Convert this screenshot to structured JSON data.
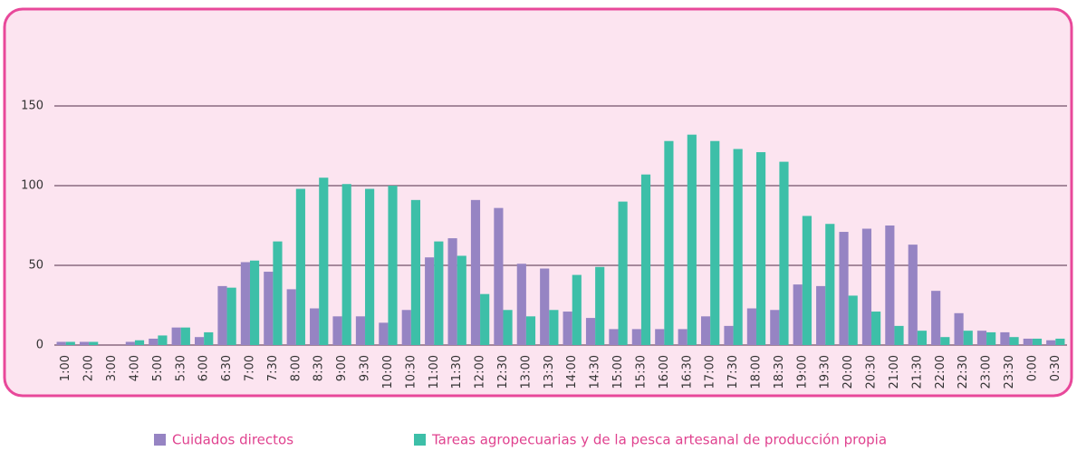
{
  "chart_data": {
    "type": "bar",
    "categories": [
      "1:00",
      "2:00",
      "3:00",
      "4:00",
      "5:00",
      "5:30",
      "6:00",
      "6:30",
      "7:00",
      "7:30",
      "8:00",
      "8:30",
      "9:00",
      "9:30",
      "10:00",
      "10:30",
      "11:00",
      "11:30",
      "12:00",
      "12:30",
      "13:00",
      "13:30",
      "14:00",
      "14:30",
      "15:00",
      "15:30",
      "16:00",
      "16:30",
      "17:00",
      "17:30",
      "18:00",
      "18:30",
      "19:00",
      "19:30",
      "20:00",
      "20:30",
      "21:00",
      "21:30",
      "22:00",
      "22:30",
      "23:00",
      "23:30",
      "0:00",
      "0:30"
    ],
    "series": [
      {
        "name": "Cuidados directos",
        "color": "#9684c3",
        "values": [
          2,
          2,
          0,
          2,
          4,
          11,
          5,
          37,
          52,
          46,
          35,
          23,
          18,
          18,
          14,
          22,
          55,
          67,
          91,
          86,
          51,
          48,
          21,
          17,
          10,
          10,
          10,
          10,
          18,
          12,
          23,
          22,
          38,
          37,
          71,
          73,
          75,
          63,
          34,
          20,
          9,
          8,
          4,
          3
        ]
      },
      {
        "name": "Tareas agropecuarias y de la pesca artesanal de producción propia",
        "color": "#3dbfa8",
        "values": [
          2,
          2,
          0,
          3,
          6,
          11,
          8,
          36,
          53,
          65,
          98,
          105,
          101,
          98,
          100,
          91,
          65,
          56,
          32,
          22,
          18,
          22,
          44,
          49,
          90,
          107,
          128,
          132,
          128,
          123,
          121,
          115,
          81,
          76,
          31,
          21,
          12,
          9,
          5,
          9,
          8,
          5,
          4,
          4
        ]
      }
    ],
    "ylim": [
      0,
      180
    ],
    "yticks": [
      0,
      50,
      100,
      150
    ],
    "grid": true,
    "legend": "bottom"
  }
}
